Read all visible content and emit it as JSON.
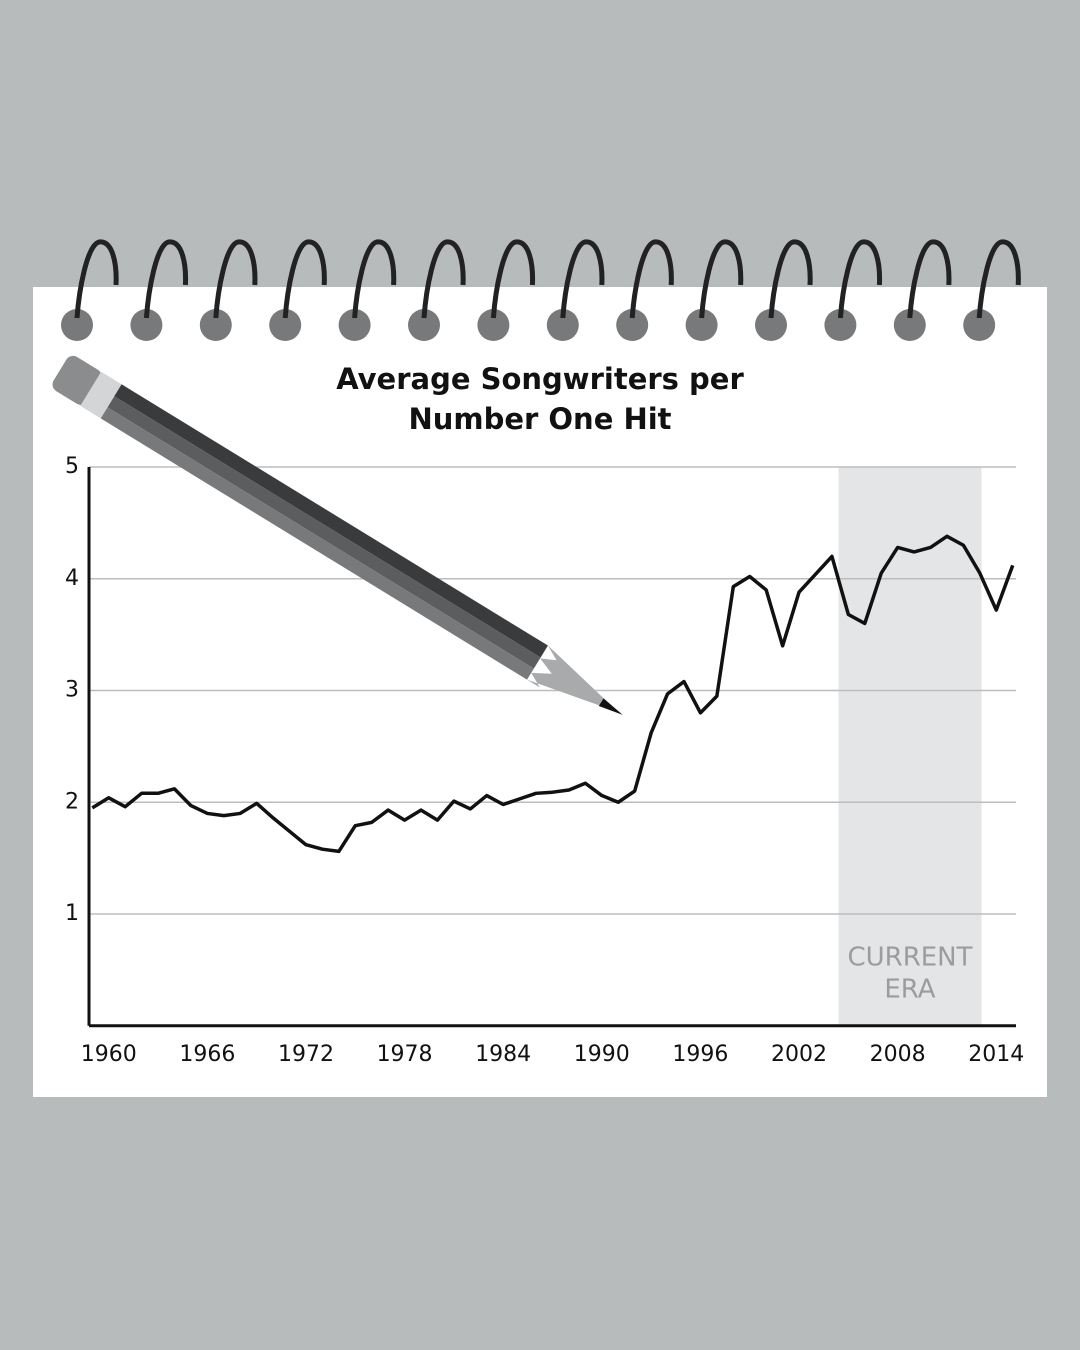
{
  "chart_data": {
    "type": "line",
    "title": [
      "Average Songwriters per",
      "Number One Hit"
    ],
    "x": [
      1959,
      1960,
      1961,
      1962,
      1963,
      1964,
      1965,
      1966,
      1967,
      1968,
      1969,
      1970,
      1971,
      1972,
      1973,
      1974,
      1975,
      1976,
      1977,
      1978,
      1979,
      1980,
      1981,
      1982,
      1983,
      1984,
      1985,
      1986,
      1987,
      1988,
      1989,
      1990,
      1991,
      1992,
      1993,
      1994,
      1995,
      1996,
      1997,
      1998,
      1999,
      2000,
      2001,
      2002,
      2003,
      2004,
      2005,
      2006,
      2007,
      2008,
      2009,
      2010,
      2011,
      2012,
      2013,
      2014,
      2015
    ],
    "values": [
      1.95,
      2.04,
      1.96,
      2.08,
      2.08,
      2.12,
      1.97,
      1.9,
      1.88,
      1.9,
      1.99,
      1.86,
      1.74,
      1.62,
      1.58,
      1.56,
      1.79,
      1.82,
      1.93,
      1.84,
      1.93,
      1.84,
      2.01,
      1.94,
      2.06,
      1.98,
      2.03,
      2.08,
      2.09,
      2.11,
      2.17,
      2.06,
      2.0,
      2.1,
      2.62,
      2.97,
      3.08,
      2.8,
      2.95,
      3.93,
      4.02,
      3.9,
      3.4,
      3.88,
      4.04,
      4.2,
      3.68,
      3.6,
      4.05,
      4.28,
      4.24,
      4.28,
      4.38,
      4.3,
      4.05,
      3.72,
      4.12
    ],
    "color": "#111111",
    "xlim": [
      1958.8,
      2015.2
    ],
    "xticks": [
      1960,
      1966,
      1972,
      1978,
      1984,
      1990,
      1996,
      2002,
      2008,
      2014
    ],
    "ylim": [
      0,
      5
    ],
    "yticks": [
      1,
      2,
      3,
      4,
      5
    ],
    "grid": true,
    "shaded_region": {
      "x": [
        2004.4,
        2013.1
      ],
      "color": "#e4e5e6",
      "label": [
        "CURRENT",
        "ERA"
      ]
    }
  }
}
